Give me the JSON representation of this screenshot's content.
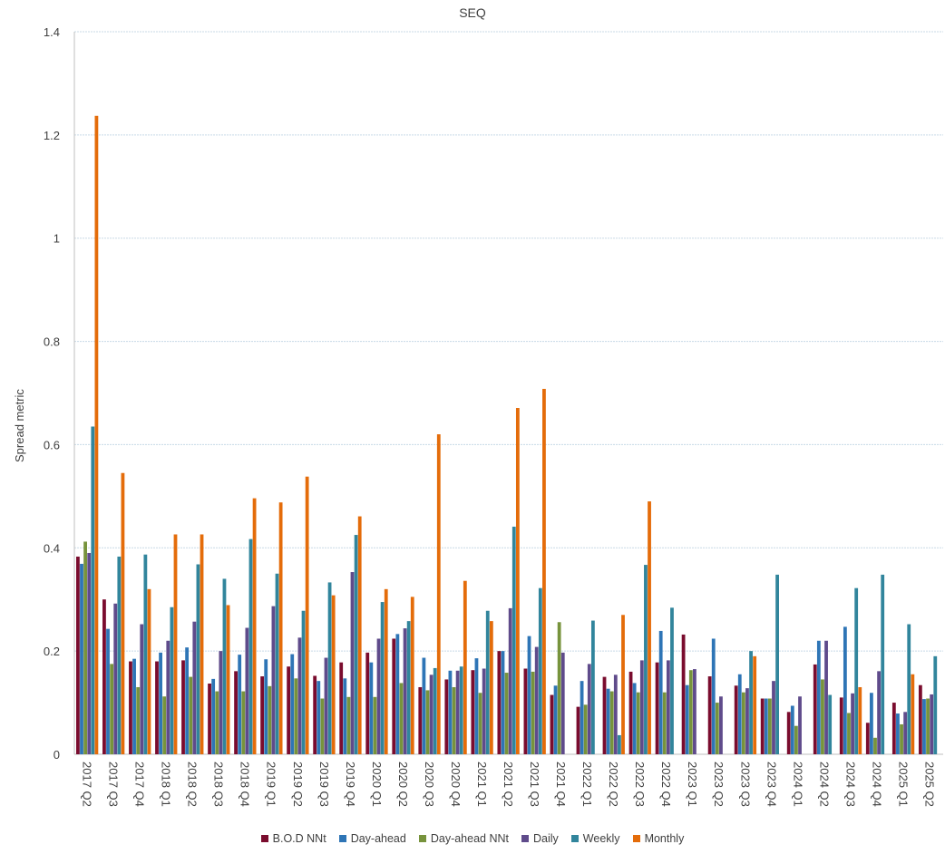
{
  "chart_data": {
    "type": "bar",
    "title": "SEQ",
    "xlabel": "",
    "ylabel": "Spread metric",
    "ylim": [
      0,
      1.4
    ],
    "yticks": [
      "0",
      "0.2",
      "0.4",
      "0.6",
      "0.8",
      "1",
      "1.2",
      "1.4"
    ],
    "grid": true,
    "legend_position": "bottom",
    "categories": [
      "2017 Q2",
      "2017 Q3",
      "2017 Q4",
      "2018 Q1",
      "2018 Q2",
      "2018 Q3",
      "2018 Q4",
      "2019 Q1",
      "2019 Q2",
      "2019 Q3",
      "2019 Q4",
      "2020 Q1",
      "2020 Q2",
      "2020 Q3",
      "2020 Q4",
      "2021 Q1",
      "2021 Q2",
      "2021 Q3",
      "2021 Q4",
      "2022 Q1",
      "2022 Q2",
      "2022 Q3",
      "2022 Q4",
      "2023 Q1",
      "2023 Q2",
      "2023 Q3",
      "2023 Q4",
      "2024 Q1",
      "2024 Q2",
      "2024 Q3",
      "2024 Q4",
      "2025 Q1",
      "2025 Q2"
    ],
    "series": [
      {
        "name": "B.O.D NNt",
        "color": "#7a0c2e",
        "values": [
          0.383,
          0.3,
          0.18,
          0.18,
          0.182,
          0.137,
          0.161,
          0.151,
          0.17,
          0.152,
          0.178,
          0.197,
          0.224,
          0.13,
          0.145,
          0.163,
          0.2,
          0.166,
          0.115,
          0.092,
          0.15,
          0.16,
          0.178,
          0.232,
          0.151,
          0.133,
          0.108,
          0.082,
          0.174,
          0.11,
          0.061,
          0.1,
          0.134
        ]
      },
      {
        "name": "Day-ahead",
        "color": "#2e75b6",
        "values": [
          0.369,
          0.243,
          0.185,
          0.197,
          0.207,
          0.146,
          0.193,
          0.184,
          0.194,
          0.142,
          0.147,
          0.178,
          0.233,
          0.187,
          0.162,
          0.186,
          0.2,
          0.229,
          0.133,
          0.142,
          0.127,
          0.138,
          0.239,
          0.134,
          0.224,
          0.155,
          0.108,
          0.094,
          0.22,
          0.247,
          0.119,
          0.079,
          0.107
        ]
      },
      {
        "name": "Day-ahead NNt",
        "color": "#77933c",
        "values": [
          0.412,
          0.175,
          0.13,
          0.112,
          0.15,
          0.122,
          0.122,
          0.132,
          0.147,
          0.108,
          0.111,
          0.111,
          0.138,
          0.124,
          0.13,
          0.119,
          0.158,
          0.16,
          0.256,
          0.096,
          0.122,
          0.12,
          0.12,
          0.163,
          0.1,
          0.12,
          0.108,
          0.055,
          0.145,
          0.08,
          0.032,
          0.058,
          0.108
        ]
      },
      {
        "name": "Daily",
        "color": "#5f4b8b",
        "values": [
          0.39,
          0.292,
          0.252,
          0.22,
          0.257,
          0.2,
          0.245,
          0.287,
          0.226,
          0.187,
          0.353,
          0.224,
          0.244,
          0.154,
          0.162,
          0.166,
          0.283,
          0.208,
          0.197,
          0.175,
          0.154,
          0.182,
          0.182,
          0.165,
          0.112,
          0.128,
          0.142,
          0.112,
          0.22,
          0.118,
          0.161,
          0.082,
          0.116
        ]
      },
      {
        "name": "Weekly",
        "color": "#31859c",
        "values": [
          0.635,
          0.383,
          0.387,
          0.285,
          0.368,
          0.34,
          0.417,
          0.35,
          0.278,
          0.333,
          0.425,
          0.295,
          0.258,
          0.167,
          0.17,
          0.278,
          0.441,
          0.322,
          0.0,
          0.259,
          0.037,
          0.367,
          0.284,
          0.0,
          0.0,
          0.2,
          0.348,
          0.0,
          0.115,
          0.322,
          0.348,
          0.252,
          0.19
        ]
      },
      {
        "name": "Monthly",
        "color": "#e46c0a",
        "values": [
          1.237,
          0.545,
          0.32,
          0.426,
          0.426,
          0.289,
          0.496,
          0.488,
          0.538,
          0.308,
          0.461,
          0.32,
          0.305,
          0.62,
          0.336,
          0.258,
          0.671,
          0.708,
          0.0,
          0.0,
          0.27,
          0.49,
          0.0,
          0.0,
          0.0,
          0.19,
          0.0,
          0.0,
          0.0,
          0.13,
          0.0,
          0.155,
          0.0
        ]
      }
    ]
  }
}
